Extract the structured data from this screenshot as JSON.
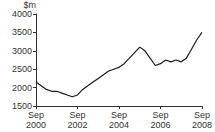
{
  "chart_data": {
    "type": "line",
    "y_label": "$m",
    "categories": [
      "Sep 2000",
      null,
      null,
      null,
      null,
      null,
      null,
      null,
      "Sep 2002",
      null,
      null,
      null,
      null,
      null,
      null,
      null,
      "Sep 2004",
      null,
      null,
      null,
      null,
      null,
      null,
      null,
      "Sep 2006",
      null,
      null,
      null,
      null,
      null,
      null,
      null,
      "Sep 2008"
    ],
    "values": [
      2150,
      2050,
      1950,
      1900,
      1900,
      1850,
      1800,
      1750,
      1800,
      1950,
      2050,
      2150,
      2250,
      2350,
      2450,
      2500,
      2550,
      2650,
      2800,
      2950,
      3100,
      3000,
      2800,
      2600,
      2650,
      2750,
      2700,
      2750,
      2700,
      2800,
      3050,
      3300,
      3500
    ],
    "color": "#1a1a1a",
    "ylim": [
      1500,
      4000
    ],
    "yticks": [
      1500,
      2000,
      2500,
      3000,
      3500,
      4000
    ],
    "grid": false
  }
}
